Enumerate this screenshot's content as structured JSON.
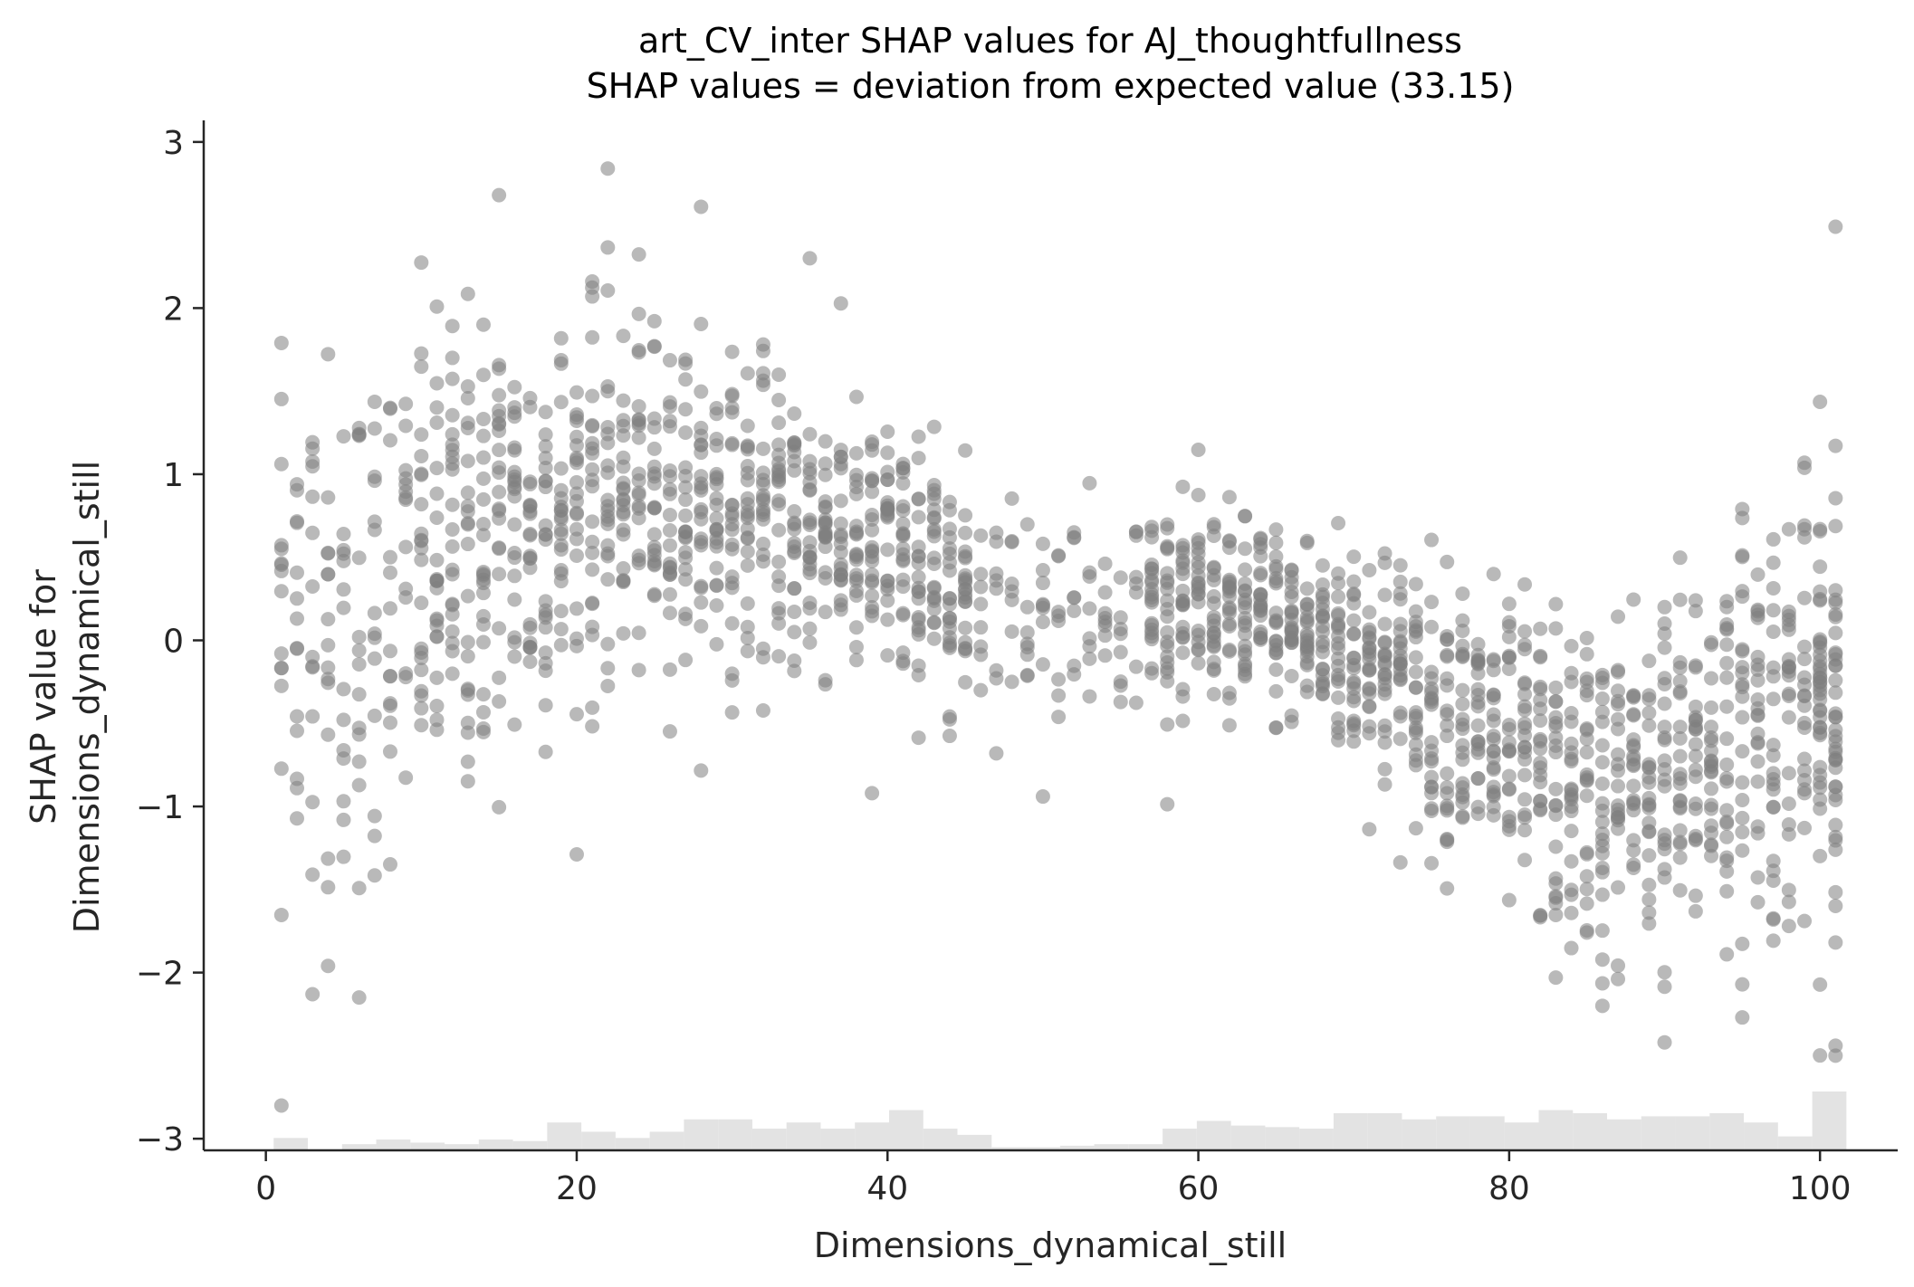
{
  "chart_data": {
    "type": "scatter",
    "title": "art_CV_inter SHAP values for AJ_thoughtfullness",
    "subtitle": "SHAP values = deviation from expected value (33.15)",
    "xlabel": "Dimensions_dynamical_still",
    "ylabel_line1": "SHAP value for",
    "ylabel_line2": "Dimensions_dynamical_still",
    "xlim": [
      -4,
      105
    ],
    "ylim": [
      -3.07,
      3.13
    ],
    "xticks": [
      0,
      20,
      40,
      60,
      80,
      100
    ],
    "xtick_labels": [
      "0",
      "20",
      "40",
      "60",
      "80",
      "100"
    ],
    "yticks": [
      3,
      2,
      1,
      0,
      -1,
      -2,
      -3
    ],
    "ytick_labels": [
      "3",
      "2",
      "1",
      "0",
      "−1",
      "−2",
      "−3"
    ],
    "grid": false,
    "point_color": "#808080",
    "point_opacity": 0.55,
    "trend": {
      "x": [
        1,
        5,
        10,
        15,
        20,
        25,
        30,
        35,
        40,
        45,
        50,
        55,
        60,
        65,
        70,
        75,
        80,
        85,
        90,
        95,
        100
      ],
      "mean": [
        0.2,
        0.0,
        0.4,
        0.6,
        0.8,
        0.9,
        0.75,
        0.7,
        0.5,
        0.3,
        0.2,
        0.25,
        0.2,
        0.1,
        -0.05,
        -0.35,
        -0.7,
        -0.95,
        -0.85,
        -0.5,
        -0.4
      ],
      "spread": [
        0.9,
        0.8,
        0.75,
        0.7,
        0.6,
        0.5,
        0.45,
        0.45,
        0.4,
        0.35,
        0.3,
        0.3,
        0.3,
        0.3,
        0.35,
        0.4,
        0.45,
        0.5,
        0.55,
        0.6,
        0.7
      ]
    },
    "extreme_points": [
      {
        "x": 22,
        "y": 2.84
      },
      {
        "x": 21,
        "y": 2.07
      },
      {
        "x": 15,
        "y": 2.68
      },
      {
        "x": 28,
        "y": 2.61
      },
      {
        "x": 101,
        "y": 2.49
      },
      {
        "x": 101,
        "y": -2.44
      },
      {
        "x": 90,
        "y": -2.42
      },
      {
        "x": 86,
        "y": -2.2
      },
      {
        "x": 6,
        "y": -2.15
      },
      {
        "x": 1,
        "y": -2.8
      },
      {
        "x": 1,
        "y": 1.79
      },
      {
        "x": 35,
        "y": 2.3
      },
      {
        "x": 4,
        "y": -1.96
      },
      {
        "x": 83,
        "y": -2.03
      },
      {
        "x": 95,
        "y": -2.27
      },
      {
        "x": 50,
        "y": -0.94
      },
      {
        "x": 39,
        "y": -0.92
      }
    ],
    "histogram": {
      "bin_edges_start": 0.5,
      "bin_width": 2.2,
      "heights": [
        0.08,
        0.0,
        0.04,
        0.07,
        0.05,
        0.04,
        0.07,
        0.06,
        0.18,
        0.12,
        0.08,
        0.12,
        0.2,
        0.2,
        0.14,
        0.18,
        0.14,
        0.18,
        0.26,
        0.14,
        0.1,
        0.02,
        0.02,
        0.03,
        0.04,
        0.04,
        0.14,
        0.19,
        0.16,
        0.15,
        0.14,
        0.24,
        0.24,
        0.2,
        0.22,
        0.22,
        0.18,
        0.26,
        0.24,
        0.2,
        0.22,
        0.22,
        0.24,
        0.18,
        0.09,
        0.38
      ],
      "color": "#e3e3e3"
    }
  }
}
